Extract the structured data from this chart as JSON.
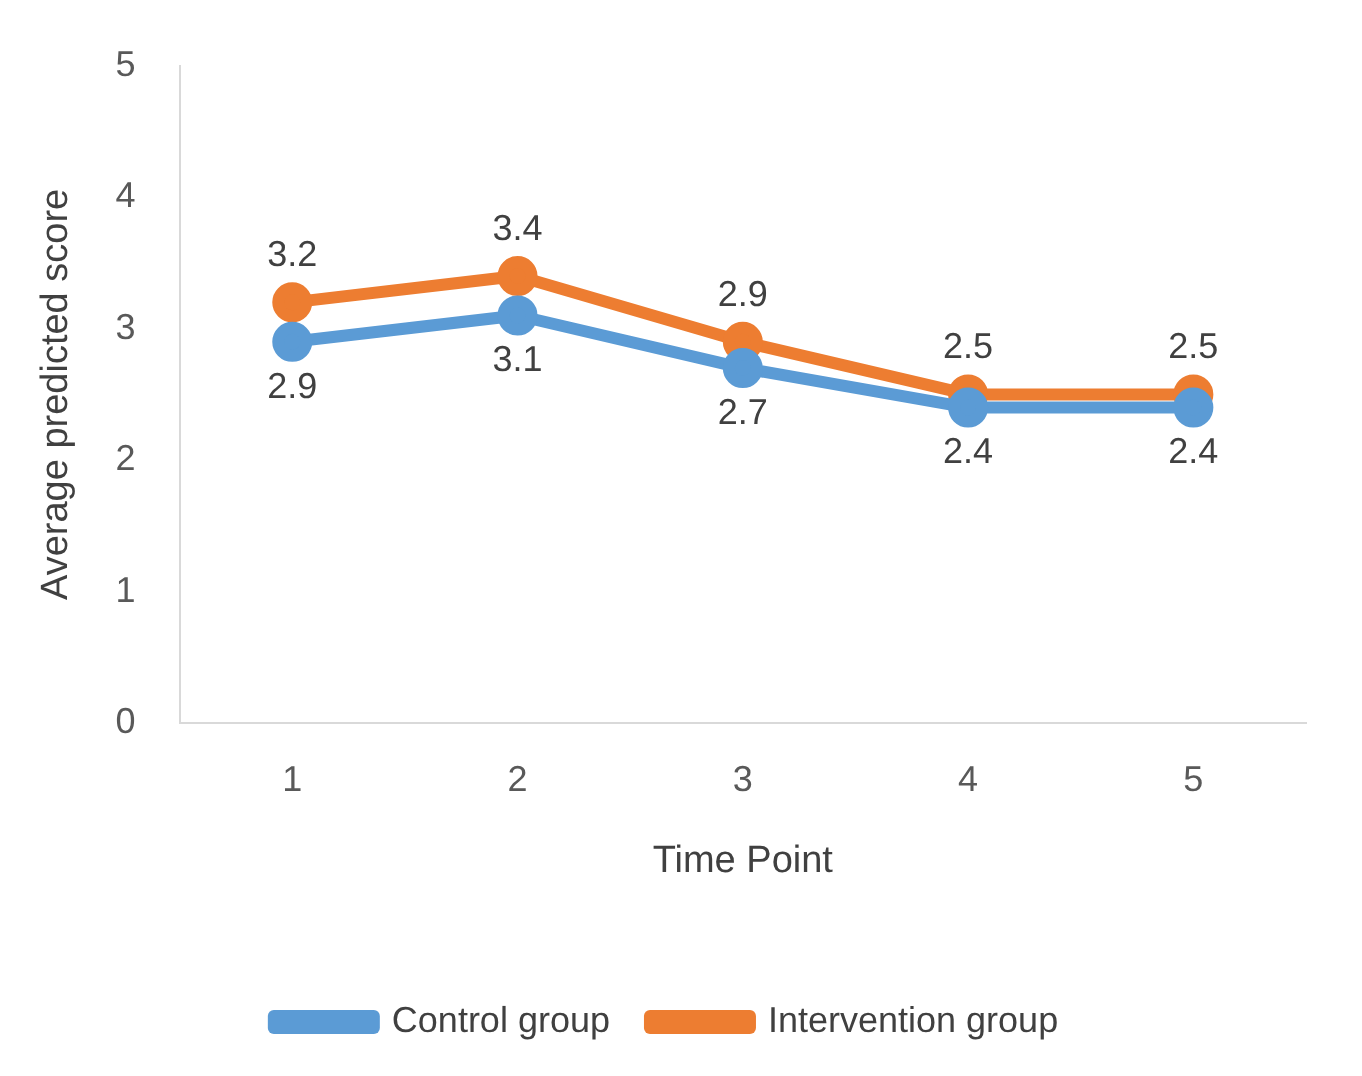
{
  "chart_data": {
    "type": "line",
    "xlabel": "Time Point",
    "ylabel": "Average predicted score",
    "categories": [
      "1",
      "2",
      "3",
      "4",
      "5"
    ],
    "series": [
      {
        "name": "Control group",
        "color": "#5b9bd5",
        "values": [
          2.9,
          3.1,
          2.7,
          2.4,
          2.4
        ]
      },
      {
        "name": "Intervention group",
        "color": "#ed7d31",
        "values": [
          3.2,
          3.4,
          2.9,
          2.5,
          2.5
        ]
      }
    ],
    "ylim": [
      0,
      5
    ],
    "yticks": [
      0,
      1,
      2,
      3,
      4,
      5
    ],
    "grid": false,
    "legend": "bottom",
    "marker": "circle",
    "line_style": "solid",
    "data_labels": true
  }
}
